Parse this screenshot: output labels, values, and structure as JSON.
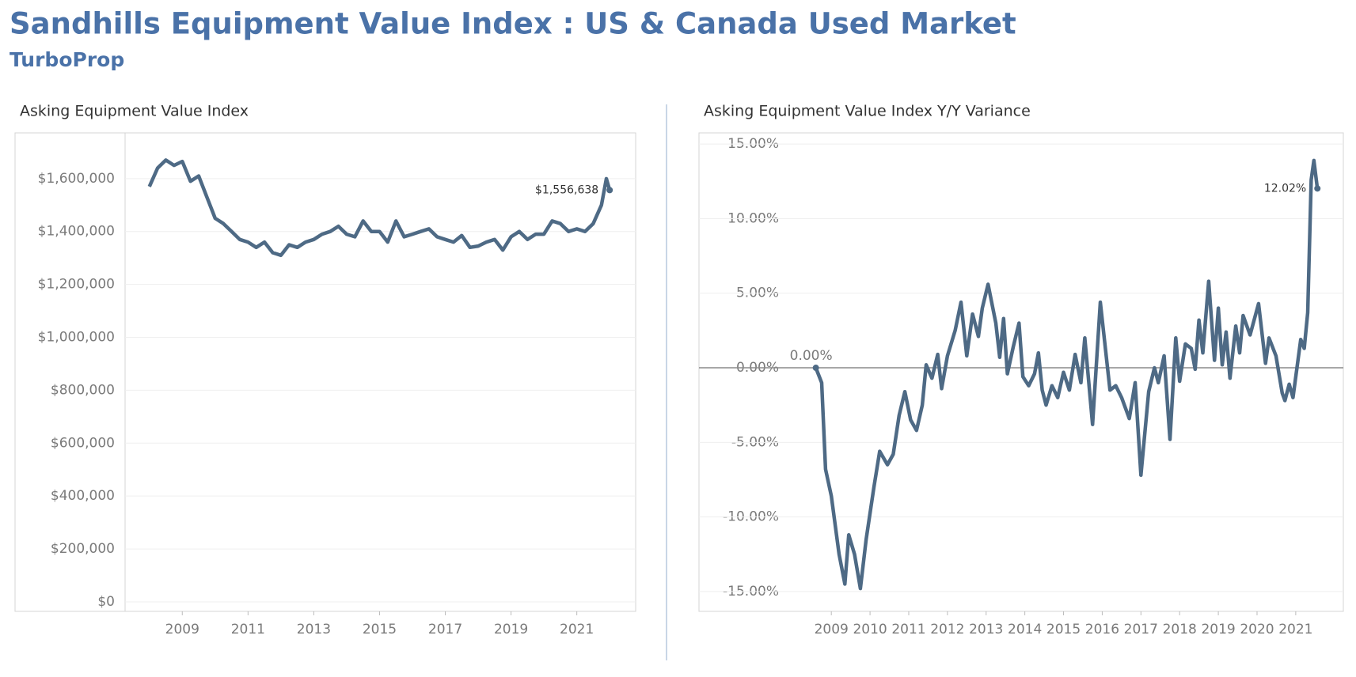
{
  "header": {
    "title": "Sandhills Equipment Value Index : US & Canada Used Market",
    "subtitle": "TurboProp"
  },
  "chart_data": [
    {
      "type": "line",
      "title": "Asking Equipment Value Index",
      "color": "#4e6a85",
      "grid": true,
      "x": [
        2008.0,
        2008.25,
        2008.5,
        2008.75,
        2009.0,
        2009.25,
        2009.5,
        2009.75,
        2010.0,
        2010.25,
        2010.5,
        2010.75,
        2011.0,
        2011.25,
        2011.5,
        2011.75,
        2012.0,
        2012.25,
        2012.5,
        2012.75,
        2013.0,
        2013.25,
        2013.5,
        2013.75,
        2014.0,
        2014.25,
        2014.5,
        2014.75,
        2015.0,
        2015.25,
        2015.5,
        2015.75,
        2016.0,
        2016.25,
        2016.5,
        2016.75,
        2017.0,
        2017.25,
        2017.5,
        2017.75,
        2018.0,
        2018.25,
        2018.5,
        2018.75,
        2019.0,
        2019.25,
        2019.5,
        2019.75,
        2020.0,
        2020.25,
        2020.5,
        2020.75,
        2021.0,
        2021.25,
        2021.5,
        2021.75,
        2021.9,
        2022.0
      ],
      "values": [
        1570000,
        1640000,
        1670000,
        1650000,
        1665000,
        1590000,
        1610000,
        1530000,
        1450000,
        1430000,
        1400000,
        1370000,
        1360000,
        1340000,
        1360000,
        1320000,
        1310000,
        1350000,
        1340000,
        1360000,
        1370000,
        1390000,
        1400000,
        1420000,
        1390000,
        1380000,
        1440000,
        1400000,
        1400000,
        1360000,
        1440000,
        1380000,
        1390000,
        1400000,
        1410000,
        1380000,
        1370000,
        1360000,
        1385000,
        1340000,
        1345000,
        1360000,
        1370000,
        1330000,
        1380000,
        1400000,
        1370000,
        1390000,
        1390000,
        1440000,
        1430000,
        1400000,
        1410000,
        1400000,
        1430000,
        1500000,
        1600000,
        1556638
      ],
      "value_labels": [
        null,
        null,
        null,
        null,
        null,
        null,
        null,
        null,
        null,
        null,
        null,
        null,
        null,
        null,
        null,
        null,
        null,
        null,
        null,
        null,
        null,
        null,
        null,
        null,
        null,
        null,
        null,
        null,
        null,
        null,
        null,
        null,
        null,
        null,
        null,
        null,
        null,
        null,
        null,
        null,
        null,
        null,
        null,
        null,
        null,
        null,
        null,
        null,
        null,
        null,
        null,
        null,
        null,
        null,
        null,
        null,
        null,
        "$1,556,638"
      ],
      "xlim": [
        2007.26,
        2022.79
      ],
      "xticks": [
        2009,
        2011,
        2013,
        2015,
        2017,
        2019,
        2021
      ],
      "ylim": [
        -36000,
        1773000
      ],
      "yticks": [
        {
          "value": 0,
          "label": "$0"
        },
        {
          "value": 200000,
          "label": "$200,000"
        },
        {
          "value": 400000,
          "label": "$400,000"
        },
        {
          "value": 600000,
          "label": "$600,000"
        },
        {
          "value": 800000,
          "label": "$800,000"
        },
        {
          "value": 1000000,
          "label": "$1,000,000"
        },
        {
          "value": 1200000,
          "label": "$1,200,000"
        },
        {
          "value": 1400000,
          "label": "$1,400,000"
        },
        {
          "value": 1600000,
          "label": "$1,600,000"
        }
      ]
    },
    {
      "type": "line",
      "title": "Asking Equipment Value Index Y/Y Variance",
      "color": "#4e6a85",
      "grid": true,
      "zero_line": true,
      "x": [
        2008.6,
        2008.75,
        2008.85,
        2009.0,
        2009.2,
        2009.35,
        2009.45,
        2009.6,
        2009.75,
        2009.9,
        2010.1,
        2010.25,
        2010.45,
        2010.6,
        2010.75,
        2010.9,
        2011.05,
        2011.2,
        2011.35,
        2011.45,
        2011.6,
        2011.75,
        2011.85,
        2012.0,
        2012.2,
        2012.35,
        2012.5,
        2012.65,
        2012.8,
        2012.9,
        2013.05,
        2013.25,
        2013.35,
        2013.45,
        2013.55,
        2013.7,
        2013.85,
        2013.95,
        2014.1,
        2014.25,
        2014.35,
        2014.45,
        2014.55,
        2014.7,
        2014.85,
        2015.0,
        2015.15,
        2015.3,
        2015.45,
        2015.55,
        2015.75,
        2015.95,
        2016.2,
        2016.35,
        2016.5,
        2016.7,
        2016.85,
        2017.0,
        2017.2,
        2017.35,
        2017.45,
        2017.6,
        2017.75,
        2017.9,
        2018.0,
        2018.15,
        2018.3,
        2018.4,
        2018.5,
        2018.6,
        2018.75,
        2018.9,
        2019.0,
        2019.1,
        2019.2,
        2019.3,
        2019.45,
        2019.55,
        2019.64,
        2019.82,
        2020.04,
        2020.22,
        2020.31,
        2020.49,
        2020.65,
        2020.72,
        2020.83,
        2020.93,
        2021.13,
        2021.22,
        2021.31,
        2021.4,
        2021.47,
        2021.56
      ],
      "values": [
        0,
        -1.0,
        -6.8,
        -8.6,
        -12.5,
        -14.5,
        -11.2,
        -12.5,
        -14.8,
        -11.5,
        -8.0,
        -5.6,
        -6.5,
        -5.8,
        -3.2,
        -1.6,
        -3.5,
        -4.2,
        -2.5,
        0.2,
        -0.7,
        0.9,
        -1.4,
        0.8,
        2.5,
        4.4,
        0.8,
        3.6,
        2.1,
        4.0,
        5.6,
        3.0,
        0.7,
        3.3,
        -0.4,
        1.4,
        3.0,
        -0.6,
        -1.2,
        -0.4,
        1.0,
        -1.5,
        -2.5,
        -1.2,
        -2.0,
        -0.3,
        -1.5,
        0.9,
        -1.0,
        2.0,
        -3.8,
        4.4,
        -1.5,
        -1.2,
        -2.0,
        -3.4,
        -1.0,
        -7.2,
        -1.6,
        0.0,
        -1.0,
        0.8,
        -4.8,
        2.0,
        -0.9,
        1.6,
        1.3,
        -0.1,
        3.2,
        1.0,
        5.8,
        0.5,
        4.0,
        0.2,
        2.4,
        -0.7,
        2.8,
        1.0,
        3.5,
        2.2,
        4.3,
        0.3,
        2.0,
        0.8,
        -1.7,
        -2.2,
        -1.1,
        -2.0,
        1.9,
        1.3,
        3.7,
        12.6,
        13.9,
        12.02
      ],
      "value_labels": [
        "0.00%",
        null,
        null,
        null,
        null,
        null,
        null,
        null,
        null,
        null,
        null,
        null,
        null,
        null,
        null,
        null,
        null,
        null,
        null,
        null,
        null,
        null,
        null,
        null,
        null,
        null,
        null,
        null,
        null,
        null,
        null,
        null,
        null,
        null,
        null,
        null,
        null,
        null,
        null,
        null,
        null,
        null,
        null,
        null,
        null,
        null,
        null,
        null,
        null,
        null,
        null,
        null,
        null,
        null,
        null,
        null,
        null,
        null,
        null,
        null,
        null,
        null,
        null,
        null,
        null,
        null,
        null,
        null,
        null,
        null,
        null,
        null,
        null,
        null,
        null,
        null,
        null,
        null,
        null,
        null,
        null,
        null,
        null,
        null,
        null,
        null,
        null,
        null,
        null,
        null,
        null,
        null,
        null,
        "12.02%"
      ],
      "xlim": [
        2005.58,
        2022.23
      ],
      "xticks": [
        2009,
        2010,
        2011,
        2012,
        2013,
        2014,
        2015,
        2016,
        2017,
        2018,
        2019,
        2020,
        2021
      ],
      "ylim": [
        -16.33,
        15.75
      ],
      "yticks": [
        {
          "value": -15,
          "label": "-15.00%"
        },
        {
          "value": -10,
          "label": "-10.00%"
        },
        {
          "value": -5,
          "label": "-5.00%"
        },
        {
          "value": 0,
          "label": "0.00%"
        },
        {
          "value": 5,
          "label": "5.00%"
        },
        {
          "value": 10,
          "label": "10.00%"
        },
        {
          "value": 15,
          "label": "15.00%"
        }
      ]
    }
  ]
}
